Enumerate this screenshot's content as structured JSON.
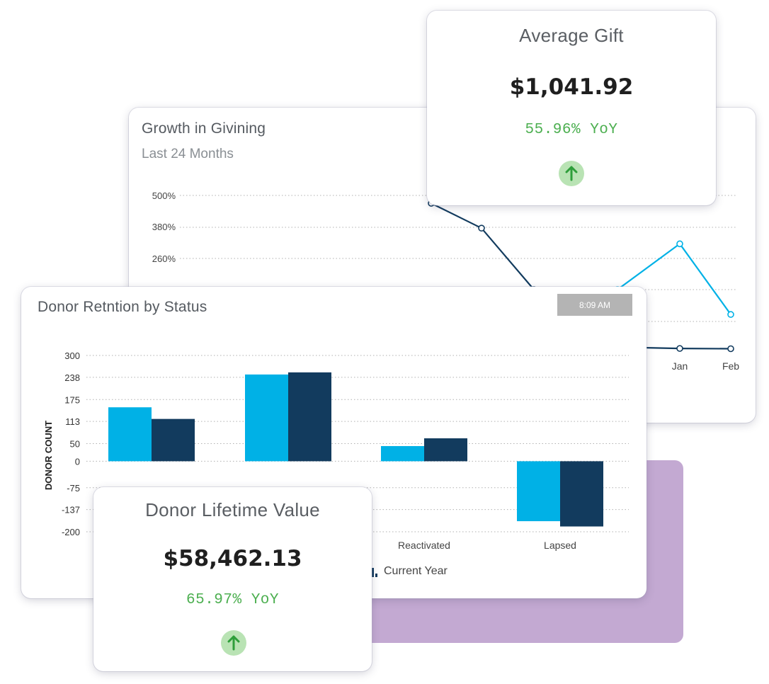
{
  "colors": {
    "dark": "#123b5e",
    "light": "#00b1e6",
    "kpi_green": "#4caf50",
    "backdrop": "#c3a9d2"
  },
  "growth": {
    "title": "Growth in Givining",
    "subtitle": "Last 24 Months",
    "y_ticks": [
      "500%",
      "380%",
      "260%"
    ],
    "x_ticks": [
      "Jan",
      "Feb"
    ]
  },
  "retention": {
    "title": "Donor Retntion by Status",
    "time": "8:09 AM",
    "ylabel": "DONOR COUNT",
    "y_ticks": [
      "300",
      "238",
      "175",
      "113",
      "50",
      "0",
      "-75",
      "-137",
      "-200"
    ],
    "x_ticks": [
      "Reactivated",
      "Lapsed"
    ],
    "legend_current": "Current Year"
  },
  "average_gift": {
    "title": "Average Gift",
    "value": "$1,041.92",
    "yoy": "55.96% YoY",
    "icon": "arrow-up-icon"
  },
  "lifetime_value": {
    "title": "Donor Lifetime Value",
    "value": "$58,462.13",
    "yoy": "65.97% YoY",
    "icon": "arrow-up-icon"
  },
  "chart_data": [
    {
      "type": "line",
      "title": "Growth in Givining",
      "subtitle": "Last 24 Months",
      "yticks": [
        "500%",
        "380%",
        "260%"
      ],
      "series": [
        {
          "color": "#123b5e",
          "x": [
            "",
            "",
            "",
            "",
            "Jan",
            "Feb"
          ],
          "values": [
            470,
            375,
            140,
            -80,
            -85,
            -86
          ]
        },
        {
          "color": "#00b1e6",
          "x": [
            "",
            "",
            "",
            "",
            "Jan",
            "Feb"
          ],
          "values": [
            null,
            null,
            null,
            140,
            315,
            45
          ]
        }
      ]
    },
    {
      "type": "bar",
      "title": "Donor Retntion by Status",
      "ylabel": "DONOR COUNT",
      "categories": [
        "",
        "",
        "Reactivated",
        "Lapsed"
      ],
      "ylim": [
        -200,
        300
      ],
      "yticks": [
        300,
        238,
        175,
        113,
        50,
        0,
        -75,
        -137,
        -200
      ],
      "series": [
        {
          "name": "",
          "color": "#00b1e6",
          "values": [
            153,
            246,
            43,
            -170
          ]
        },
        {
          "name": "Current Year",
          "color": "#123b5e",
          "values": [
            120,
            252,
            65,
            -185
          ]
        }
      ]
    }
  ]
}
